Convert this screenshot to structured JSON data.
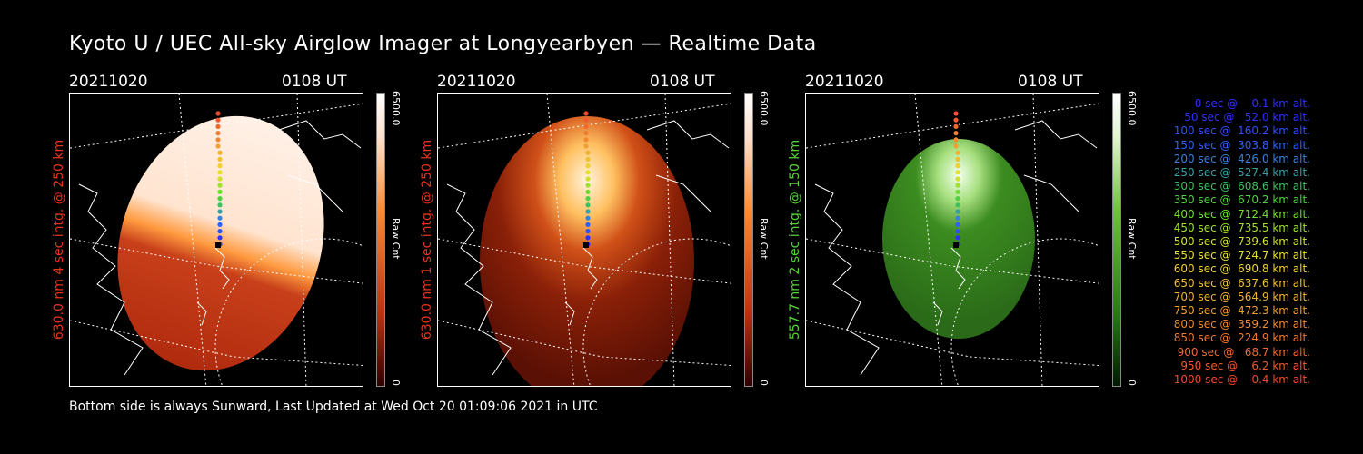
{
  "header": {
    "title": "Kyoto U / UEC All-sky Airglow Imager at Longyearbyen — Realtime Data"
  },
  "footer": {
    "text": "Bottom side is always Sunward, Last Updated at Wed Oct 20 01:09:06 2021 in UTC"
  },
  "colors": {
    "red_label": "#e8321e",
    "green_label": "#58d238"
  },
  "chart_data": [
    {
      "type": "heatmap",
      "date": "20211020",
      "time": "0108 UT",
      "ylabel": "630.0 nm 4 sec intg. @ 250 km",
      "colorbar_label": "Raw Cnt",
      "colorbar_max": "6500.0",
      "colorbar_min": "0",
      "cmap": "red"
    },
    {
      "type": "heatmap",
      "date": "20211020",
      "time": "0108 UT",
      "ylabel": "630.0 nm 1 sec intg. @ 250 km",
      "colorbar_label": "Raw Cnt",
      "colorbar_max": "6500.0",
      "colorbar_min": "0",
      "cmap": "red"
    },
    {
      "type": "heatmap",
      "date": "20211020",
      "time": "0108 UT",
      "ylabel": "557.7 nm 2 sec intg. @ 150 km",
      "colorbar_label": "Raw Cnt",
      "colorbar_max": "6500.0",
      "colorbar_min": "0",
      "cmap": "green"
    }
  ],
  "legend": [
    {
      "text": "0 sec @    0.1 km alt.",
      "color": "#3030ff"
    },
    {
      "text": "50 sec @   52.0 km alt.",
      "color": "#3030ff"
    },
    {
      "text": "100 sec @  160.2 km alt.",
      "color": "#3050ff"
    },
    {
      "text": "150 sec @  303.8 km alt.",
      "color": "#3060ff"
    },
    {
      "text": "200 sec @  426.0 km alt.",
      "color": "#3a80d8"
    },
    {
      "text": "250 sec @  527.4 km alt.",
      "color": "#3aa0a8"
    },
    {
      "text": "300 sec @  608.6 km alt.",
      "color": "#40c060"
    },
    {
      "text": "350 sec @  670.2 km alt.",
      "color": "#50d040"
    },
    {
      "text": "400 sec @  712.4 km alt.",
      "color": "#70e030"
    },
    {
      "text": "450 sec @  735.5 km alt.",
      "color": "#a0e030"
    },
    {
      "text": "500 sec @  739.6 km alt.",
      "color": "#d0e030"
    },
    {
      "text": "550 sec @  724.7 km alt.",
      "color": "#e8e030"
    },
    {
      "text": "600 sec @  690.8 km alt.",
      "color": "#f0d030"
    },
    {
      "text": "650 sec @  637.6 km alt.",
      "color": "#f0c030"
    },
    {
      "text": "700 sec @  564.9 km alt.",
      "color": "#f0b030"
    },
    {
      "text": "750 sec @  472.3 km alt.",
      "color": "#f0a030"
    },
    {
      "text": "800 sec @  359.2 km alt.",
      "color": "#f08a30"
    },
    {
      "text": "850 sec @  224.9 km alt.",
      "color": "#f07a30"
    },
    {
      "text": "900 sec @   68.7 km alt.",
      "color": "#f06a30"
    },
    {
      "text": "950 sec @    6.2 km alt.",
      "color": "#f05a30"
    },
    {
      "text": "1000 sec @    0.4 km alt.",
      "color": "#f04a30"
    }
  ]
}
